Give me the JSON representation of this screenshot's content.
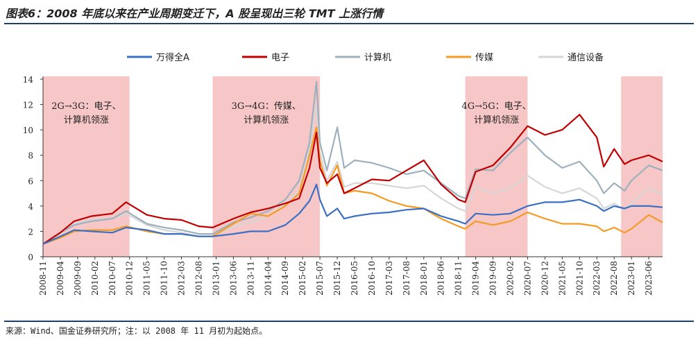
{
  "header": {
    "title": "图表6：2008 年底以来在产业周期变迁下，A 股呈现出三轮 TMT 上涨行情"
  },
  "footer": {
    "source": "来源：Wind、国金证券研究所；注：以 2008 年 11 月初为起始点。"
  },
  "chart_data": {
    "type": "line",
    "title": "图表6：2008 年底以来在产业周期变迁下，A 股呈现出三轮 TMT 上涨行情",
    "xlabel": "",
    "ylabel": "",
    "ylim": [
      0,
      14
    ],
    "y_ticks": [
      0,
      2,
      4,
      6,
      8,
      10,
      12,
      14
    ],
    "xlim": [
      "2008-11",
      "2023-10"
    ],
    "x_ticks": [
      "2008-11",
      "2009-04",
      "2009-09",
      "2010-02",
      "2010-07",
      "2010-12",
      "2011-05",
      "2011-10",
      "2012-03",
      "2012-08",
      "2013-01",
      "2013-06",
      "2013-11",
      "2014-04",
      "2014-09",
      "2015-02",
      "2015-07",
      "2015-12",
      "2016-05",
      "2016-10",
      "2017-03",
      "2017-08",
      "2018-01",
      "2018-06",
      "2018-11",
      "2019-04",
      "2019-09",
      "2020-02",
      "2020-07",
      "2020-12",
      "2021-05",
      "2021-10",
      "2022-03",
      "2022-08",
      "2023-01",
      "2023-06"
    ],
    "grid": false,
    "legend_position": "top",
    "shaded_periods": [
      {
        "start": "2008-11",
        "end": "2010-12",
        "label_lines": [
          "2G→3G：电子、",
          "计算机领涨"
        ]
      },
      {
        "start": "2012-12",
        "end": "2015-07",
        "label_lines": [
          "3G→4G：传媒、",
          "计算机领涨"
        ]
      },
      {
        "start": "2019-01",
        "end": "2020-07",
        "label_lines": [
          "4G→5G：电子、",
          "计算机领涨"
        ]
      },
      {
        "start": "2022-10",
        "end": "2023-10",
        "label_lines": []
      }
    ],
    "shade_color": "#f7c6c6",
    "series": [
      {
        "name": "万得全A",
        "color": "#3a6fc4",
        "points": [
          [
            "2008-11",
            1.0
          ],
          [
            "2009-04",
            1.6
          ],
          [
            "2009-08",
            2.1
          ],
          [
            "2010-01",
            2.0
          ],
          [
            "2010-07",
            1.9
          ],
          [
            "2010-11",
            2.3
          ],
          [
            "2011-05",
            2.1
          ],
          [
            "2011-10",
            1.8
          ],
          [
            "2012-03",
            1.8
          ],
          [
            "2012-08",
            1.6
          ],
          [
            "2012-12",
            1.6
          ],
          [
            "2013-06",
            1.8
          ],
          [
            "2013-11",
            2.0
          ],
          [
            "2014-04",
            2.0
          ],
          [
            "2014-09",
            2.5
          ],
          [
            "2015-01",
            3.4
          ],
          [
            "2015-04",
            4.4
          ],
          [
            "2015-06",
            5.7
          ],
          [
            "2015-07",
            4.5
          ],
          [
            "2015-09",
            3.2
          ],
          [
            "2015-12",
            3.8
          ],
          [
            "2016-02",
            3.0
          ],
          [
            "2016-05",
            3.2
          ],
          [
            "2016-10",
            3.4
          ],
          [
            "2017-03",
            3.5
          ],
          [
            "2017-08",
            3.7
          ],
          [
            "2018-01",
            3.8
          ],
          [
            "2018-06",
            3.2
          ],
          [
            "2018-11",
            2.8
          ],
          [
            "2019-01",
            2.6
          ],
          [
            "2019-04",
            3.4
          ],
          [
            "2019-09",
            3.3
          ],
          [
            "2020-02",
            3.4
          ],
          [
            "2020-07",
            4.0
          ],
          [
            "2020-12",
            4.3
          ],
          [
            "2021-05",
            4.3
          ],
          [
            "2021-10",
            4.5
          ],
          [
            "2022-03",
            4.0
          ],
          [
            "2022-05",
            3.6
          ],
          [
            "2022-08",
            4.0
          ],
          [
            "2022-11",
            3.8
          ],
          [
            "2023-01",
            4.0
          ],
          [
            "2023-06",
            4.0
          ],
          [
            "2023-10",
            3.9
          ]
        ]
      },
      {
        "name": "电子",
        "color": "#c00000",
        "points": [
          [
            "2008-11",
            1.0
          ],
          [
            "2009-04",
            1.9
          ],
          [
            "2009-08",
            2.8
          ],
          [
            "2010-01",
            3.2
          ],
          [
            "2010-07",
            3.4
          ],
          [
            "2010-11",
            4.3
          ],
          [
            "2011-05",
            3.3
          ],
          [
            "2011-10",
            3.0
          ],
          [
            "2012-03",
            2.9
          ],
          [
            "2012-08",
            2.4
          ],
          [
            "2012-12",
            2.3
          ],
          [
            "2013-06",
            3.0
          ],
          [
            "2013-11",
            3.5
          ],
          [
            "2014-04",
            3.8
          ],
          [
            "2014-09",
            4.2
          ],
          [
            "2015-01",
            4.6
          ],
          [
            "2015-04",
            7.0
          ],
          [
            "2015-06",
            9.8
          ],
          [
            "2015-07",
            7.0
          ],
          [
            "2015-09",
            5.8
          ],
          [
            "2015-12",
            6.5
          ],
          [
            "2016-02",
            5.0
          ],
          [
            "2016-05",
            5.4
          ],
          [
            "2016-10",
            6.1
          ],
          [
            "2017-03",
            6.0
          ],
          [
            "2017-08",
            6.8
          ],
          [
            "2018-01",
            7.6
          ],
          [
            "2018-06",
            5.7
          ],
          [
            "2018-11",
            4.5
          ],
          [
            "2019-01",
            4.3
          ],
          [
            "2019-04",
            6.7
          ],
          [
            "2019-09",
            7.2
          ],
          [
            "2020-02",
            8.6
          ],
          [
            "2020-07",
            10.3
          ],
          [
            "2020-12",
            9.6
          ],
          [
            "2021-05",
            10.0
          ],
          [
            "2021-10",
            11.2
          ],
          [
            "2022-03",
            9.4
          ],
          [
            "2022-05",
            7.1
          ],
          [
            "2022-08",
            8.5
          ],
          [
            "2022-11",
            7.3
          ],
          [
            "2023-01",
            7.6
          ],
          [
            "2023-06",
            8.0
          ],
          [
            "2023-10",
            7.5
          ]
        ]
      },
      {
        "name": "计算机",
        "color": "#9db0bd",
        "points": [
          [
            "2008-11",
            1.0
          ],
          [
            "2009-04",
            1.9
          ],
          [
            "2009-08",
            2.5
          ],
          [
            "2010-01",
            2.8
          ],
          [
            "2010-07",
            3.0
          ],
          [
            "2010-11",
            3.6
          ],
          [
            "2011-05",
            2.6
          ],
          [
            "2011-10",
            2.3
          ],
          [
            "2012-03",
            2.1
          ],
          [
            "2012-08",
            1.8
          ],
          [
            "2012-12",
            1.8
          ],
          [
            "2013-06",
            2.7
          ],
          [
            "2013-11",
            3.1
          ],
          [
            "2014-04",
            3.6
          ],
          [
            "2014-09",
            4.5
          ],
          [
            "2015-01",
            6.0
          ],
          [
            "2015-04",
            9.0
          ],
          [
            "2015-06",
            13.8
          ],
          [
            "2015-07",
            9.0
          ],
          [
            "2015-09",
            6.8
          ],
          [
            "2015-12",
            10.2
          ],
          [
            "2016-02",
            7.0
          ],
          [
            "2016-05",
            7.6
          ],
          [
            "2016-10",
            7.4
          ],
          [
            "2017-03",
            7.0
          ],
          [
            "2017-08",
            6.5
          ],
          [
            "2018-01",
            6.8
          ],
          [
            "2018-06",
            5.8
          ],
          [
            "2018-11",
            4.8
          ],
          [
            "2019-01",
            4.6
          ],
          [
            "2019-04",
            6.9
          ],
          [
            "2019-09",
            6.8
          ],
          [
            "2020-02",
            8.2
          ],
          [
            "2020-07",
            9.4
          ],
          [
            "2020-12",
            8.0
          ],
          [
            "2021-05",
            7.0
          ],
          [
            "2021-10",
            7.5
          ],
          [
            "2022-03",
            6.0
          ],
          [
            "2022-05",
            5.0
          ],
          [
            "2022-08",
            5.8
          ],
          [
            "2022-11",
            5.2
          ],
          [
            "2023-01",
            6.0
          ],
          [
            "2023-06",
            7.2
          ],
          [
            "2023-10",
            6.8
          ]
        ]
      },
      {
        "name": "传媒",
        "color": "#f59a23",
        "points": [
          [
            "2008-11",
            1.0
          ],
          [
            "2009-04",
            1.5
          ],
          [
            "2009-08",
            2.0
          ],
          [
            "2010-01",
            2.1
          ],
          [
            "2010-07",
            2.1
          ],
          [
            "2010-11",
            2.4
          ],
          [
            "2011-05",
            2.0
          ],
          [
            "2011-10",
            1.8
          ],
          [
            "2012-03",
            1.8
          ],
          [
            "2012-08",
            1.6
          ],
          [
            "2012-12",
            1.6
          ],
          [
            "2013-06",
            2.6
          ],
          [
            "2013-11",
            3.4
          ],
          [
            "2014-04",
            3.2
          ],
          [
            "2014-09",
            4.0
          ],
          [
            "2015-01",
            5.0
          ],
          [
            "2015-04",
            8.0
          ],
          [
            "2015-06",
            10.2
          ],
          [
            "2015-07",
            7.6
          ],
          [
            "2015-09",
            5.6
          ],
          [
            "2015-12",
            7.2
          ],
          [
            "2016-02",
            5.0
          ],
          [
            "2016-05",
            5.2
          ],
          [
            "2016-10",
            5.0
          ],
          [
            "2017-03",
            4.4
          ],
          [
            "2017-08",
            4.0
          ],
          [
            "2018-01",
            3.8
          ],
          [
            "2018-06",
            3.0
          ],
          [
            "2018-11",
            2.4
          ],
          [
            "2019-01",
            2.2
          ],
          [
            "2019-04",
            2.8
          ],
          [
            "2019-09",
            2.5
          ],
          [
            "2020-02",
            2.8
          ],
          [
            "2020-07",
            3.5
          ],
          [
            "2020-12",
            3.0
          ],
          [
            "2021-05",
            2.6
          ],
          [
            "2021-10",
            2.6
          ],
          [
            "2022-03",
            2.4
          ],
          [
            "2022-05",
            2.0
          ],
          [
            "2022-08",
            2.3
          ],
          [
            "2022-11",
            1.9
          ],
          [
            "2023-01",
            2.2
          ],
          [
            "2023-06",
            3.3
          ],
          [
            "2023-10",
            2.7
          ]
        ]
      },
      {
        "name": "通信设备",
        "color": "#d6d6d6",
        "points": [
          [
            "2008-11",
            1.0
          ],
          [
            "2009-04",
            1.8
          ],
          [
            "2009-08",
            2.6
          ],
          [
            "2010-01",
            2.9
          ],
          [
            "2010-07",
            3.0
          ],
          [
            "2010-11",
            3.4
          ],
          [
            "2011-05",
            2.5
          ],
          [
            "2011-10",
            2.1
          ],
          [
            "2012-03",
            1.9
          ],
          [
            "2012-08",
            1.6
          ],
          [
            "2012-12",
            1.6
          ],
          [
            "2013-06",
            2.4
          ],
          [
            "2013-11",
            2.7
          ],
          [
            "2014-04",
            3.2
          ],
          [
            "2014-09",
            4.2
          ],
          [
            "2015-01",
            5.2
          ],
          [
            "2015-04",
            8.5
          ],
          [
            "2015-06",
            12.0
          ],
          [
            "2015-07",
            8.2
          ],
          [
            "2015-09",
            6.0
          ],
          [
            "2015-12",
            7.5
          ],
          [
            "2016-02",
            5.5
          ],
          [
            "2016-05",
            5.8
          ],
          [
            "2016-10",
            5.8
          ],
          [
            "2017-03",
            5.6
          ],
          [
            "2017-08",
            5.4
          ],
          [
            "2018-01",
            5.6
          ],
          [
            "2018-06",
            4.6
          ],
          [
            "2018-11",
            3.8
          ],
          [
            "2019-01",
            3.6
          ],
          [
            "2019-04",
            5.5
          ],
          [
            "2019-09",
            5.0
          ],
          [
            "2020-02",
            5.4
          ],
          [
            "2020-07",
            6.4
          ],
          [
            "2020-12",
            5.5
          ],
          [
            "2021-05",
            5.0
          ],
          [
            "2021-10",
            5.4
          ],
          [
            "2022-03",
            4.6
          ],
          [
            "2022-05",
            3.8
          ],
          [
            "2022-08",
            4.2
          ],
          [
            "2022-11",
            3.7
          ],
          [
            "2023-01",
            4.2
          ],
          [
            "2023-06",
            5.4
          ],
          [
            "2023-10",
            4.9
          ]
        ]
      }
    ]
  }
}
